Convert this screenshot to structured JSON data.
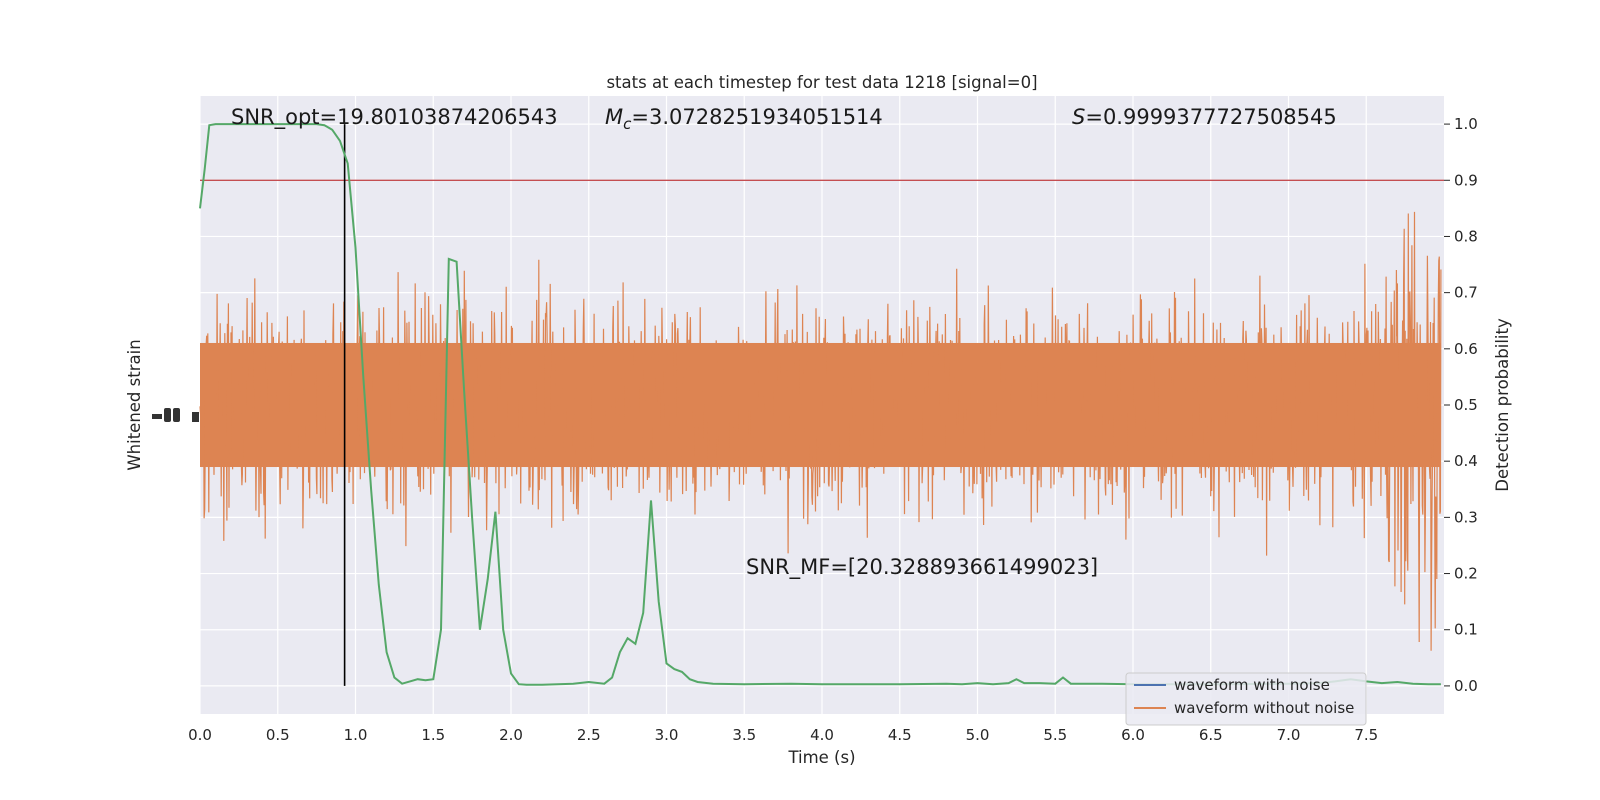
{
  "chart_data": {
    "type": "line",
    "title": "stats at each timestep for test data 1218 [signal=0]",
    "xlabel": "Time (s)",
    "ylabel_left": "Whitened strain",
    "ylabel_right": "Detection probability",
    "xlim": [
      0,
      8
    ],
    "ylim_right": [
      -0.05,
      1.05
    ],
    "x_ticks": [
      "0.0",
      "0.5",
      "1.0",
      "1.5",
      "2.0",
      "2.5",
      "3.0",
      "3.5",
      "4.0",
      "4.5",
      "5.0",
      "5.5",
      "6.0",
      "6.5",
      "7.0",
      "7.5"
    ],
    "y_ticks_right": [
      "0.0",
      "0.1",
      "0.2",
      "0.3",
      "0.4",
      "0.5",
      "0.6",
      "0.7",
      "0.8",
      "0.9",
      "1.0"
    ],
    "grid": true,
    "annotations": {
      "snr_opt": "SNR_opt=19.80103874206543",
      "mc_symbol": "M",
      "mc_sub": "c",
      "mc_value": "=3.0728251934051514",
      "s_symbol": "S",
      "s_value": "=0.9999377727508545",
      "snr_mf": "SNR_MF=[20.328893661499023]"
    },
    "threshold": {
      "value": 0.9,
      "color": "#c44e52"
    },
    "marker_time": 0.93,
    "legend": {
      "position": "lower-right",
      "entries": [
        {
          "label": "waveform with noise",
          "color": "#4c72b0"
        },
        {
          "label": "waveform without noise",
          "color": "#dd8452"
        }
      ]
    },
    "series": [
      {
        "name": "waveform without noise",
        "color": "#dd8452",
        "kind": "noise-strain",
        "seed": 1218,
        "samples": 2400,
        "amplitude": 0.46,
        "spike_time": 7.9
      },
      {
        "name": "",
        "color": "#55a868",
        "kind": "detection-probability",
        "x": [
          0.0,
          0.03,
          0.06,
          0.1,
          0.2,
          0.3,
          0.4,
          0.5,
          0.6,
          0.7,
          0.75,
          0.8,
          0.85,
          0.9,
          0.95,
          1.0,
          1.05,
          1.1,
          1.15,
          1.2,
          1.25,
          1.3,
          1.35,
          1.4,
          1.45,
          1.5,
          1.55,
          1.6,
          1.65,
          1.7,
          1.75,
          1.8,
          1.85,
          1.9,
          1.95,
          2.0,
          2.05,
          2.1,
          2.2,
          2.3,
          2.4,
          2.5,
          2.6,
          2.65,
          2.7,
          2.75,
          2.8,
          2.85,
          2.9,
          2.95,
          3.0,
          3.05,
          3.1,
          3.15,
          3.2,
          3.3,
          3.5,
          3.8,
          4.0,
          4.5,
          4.8,
          4.9,
          5.0,
          5.1,
          5.2,
          5.25,
          5.3,
          5.4,
          5.5,
          5.55,
          5.6,
          5.7,
          5.8,
          6.0,
          6.5,
          7.0,
          7.2,
          7.3,
          7.4,
          7.5,
          7.6,
          7.7,
          7.8,
          7.9,
          7.98
        ],
        "y": [
          0.85,
          0.92,
          0.998,
          1.0,
          1.0,
          1.0,
          1.0,
          1.0,
          1.0,
          1.0,
          1.0,
          0.998,
          0.99,
          0.97,
          0.93,
          0.78,
          0.55,
          0.35,
          0.18,
          0.06,
          0.015,
          0.004,
          0.008,
          0.012,
          0.01,
          0.012,
          0.1,
          0.76,
          0.755,
          0.52,
          0.3,
          0.1,
          0.19,
          0.31,
          0.1,
          0.022,
          0.003,
          0.002,
          0.002,
          0.003,
          0.004,
          0.007,
          0.004,
          0.015,
          0.06,
          0.085,
          0.075,
          0.13,
          0.33,
          0.15,
          0.04,
          0.03,
          0.025,
          0.012,
          0.007,
          0.004,
          0.003,
          0.004,
          0.003,
          0.003,
          0.004,
          0.003,
          0.005,
          0.003,
          0.005,
          0.012,
          0.005,
          0.005,
          0.004,
          0.015,
          0.004,
          0.004,
          0.004,
          0.003,
          0.003,
          0.004,
          0.005,
          0.008,
          0.012,
          0.008,
          0.005,
          0.007,
          0.004,
          0.003,
          0.003
        ]
      }
    ]
  }
}
